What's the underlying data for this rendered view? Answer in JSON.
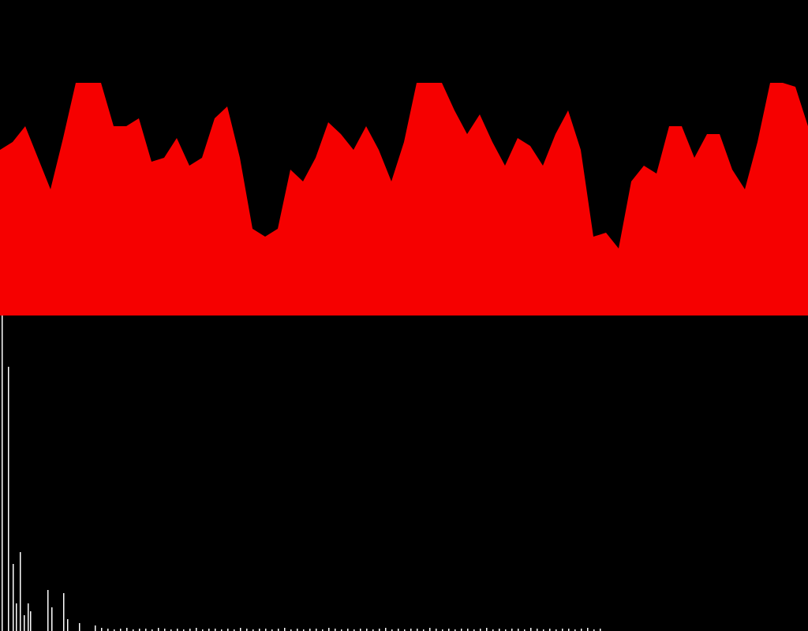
{
  "chart_data": [
    {
      "type": "area",
      "color": "#f60000",
      "xlim": [
        0,
        1024
      ],
      "ylim": [
        0,
        400
      ],
      "x": [
        0,
        16,
        32,
        48,
        64,
        80,
        96,
        112,
        128,
        144,
        160,
        176,
        192,
        208,
        224,
        240,
        256,
        272,
        288,
        304,
        320,
        336,
        352,
        368,
        384,
        400,
        416,
        432,
        448,
        464,
        480,
        496,
        512,
        528,
        544,
        560,
        576,
        592,
        608,
        624,
        640,
        656,
        672,
        688,
        704,
        720,
        736,
        752,
        768,
        784,
        800,
        816,
        832,
        848,
        864,
        880,
        896,
        912,
        928,
        944,
        960,
        976,
        992,
        1008,
        1024
      ],
      "values": [
        210,
        220,
        240,
        200,
        160,
        225,
        295,
        295,
        295,
        240,
        240,
        250,
        195,
        200,
        225,
        190,
        200,
        250,
        265,
        200,
        110,
        100,
        110,
        185,
        170,
        200,
        245,
        230,
        210,
        240,
        210,
        170,
        220,
        295,
        295,
        295,
        260,
        230,
        255,
        220,
        190,
        225,
        215,
        190,
        230,
        260,
        210,
        100,
        105,
        85,
        170,
        190,
        180,
        240,
        240,
        200,
        230,
        230,
        185,
        160,
        220,
        295,
        295,
        290,
        240
      ]
    },
    {
      "type": "bar",
      "color": "#ffffff",
      "xlim": [
        0,
        1024
      ],
      "ylim": [
        0,
        400
      ],
      "x": [
        2,
        10,
        16,
        20,
        25,
        30,
        35,
        38,
        60,
        65,
        80,
        85,
        100,
        120,
        128,
        136,
        144,
        152,
        160,
        168,
        176,
        184,
        192,
        200,
        208,
        216,
        224,
        232,
        240,
        248,
        256,
        264,
        272,
        280,
        288,
        296,
        304,
        312,
        320,
        328,
        336,
        344,
        352,
        360,
        368,
        376,
        384,
        392,
        400,
        408,
        416,
        424,
        432,
        440,
        448,
        456,
        464,
        472,
        480,
        488,
        496,
        504,
        512,
        520,
        528,
        536,
        544,
        552,
        560,
        568,
        576,
        584,
        592,
        600,
        608,
        616,
        624,
        632,
        640,
        648,
        656,
        664,
        672,
        680,
        688,
        696,
        704,
        712,
        720,
        728,
        736,
        744,
        752,
        760
      ],
      "values": [
        400,
        335,
        85,
        35,
        100,
        20,
        35,
        25,
        52,
        30,
        48,
        15,
        10,
        7,
        4,
        3,
        2,
        3,
        4,
        2,
        3,
        3,
        2,
        4,
        3,
        2,
        3,
        2,
        3,
        4,
        2,
        3,
        3,
        2,
        3,
        2,
        4,
        3,
        2,
        3,
        3,
        2,
        3,
        4,
        2,
        3,
        2,
        3,
        3,
        2,
        4,
        3,
        2,
        3,
        2,
        3,
        3,
        2,
        3,
        4,
        2,
        3,
        2,
        3,
        3,
        2,
        4,
        3,
        2,
        3,
        2,
        3,
        3,
        2,
        3,
        4,
        2,
        3,
        2,
        3,
        3,
        2,
        4,
        3,
        2,
        3,
        2,
        3,
        3,
        2,
        3,
        4,
        2,
        3
      ]
    }
  ]
}
